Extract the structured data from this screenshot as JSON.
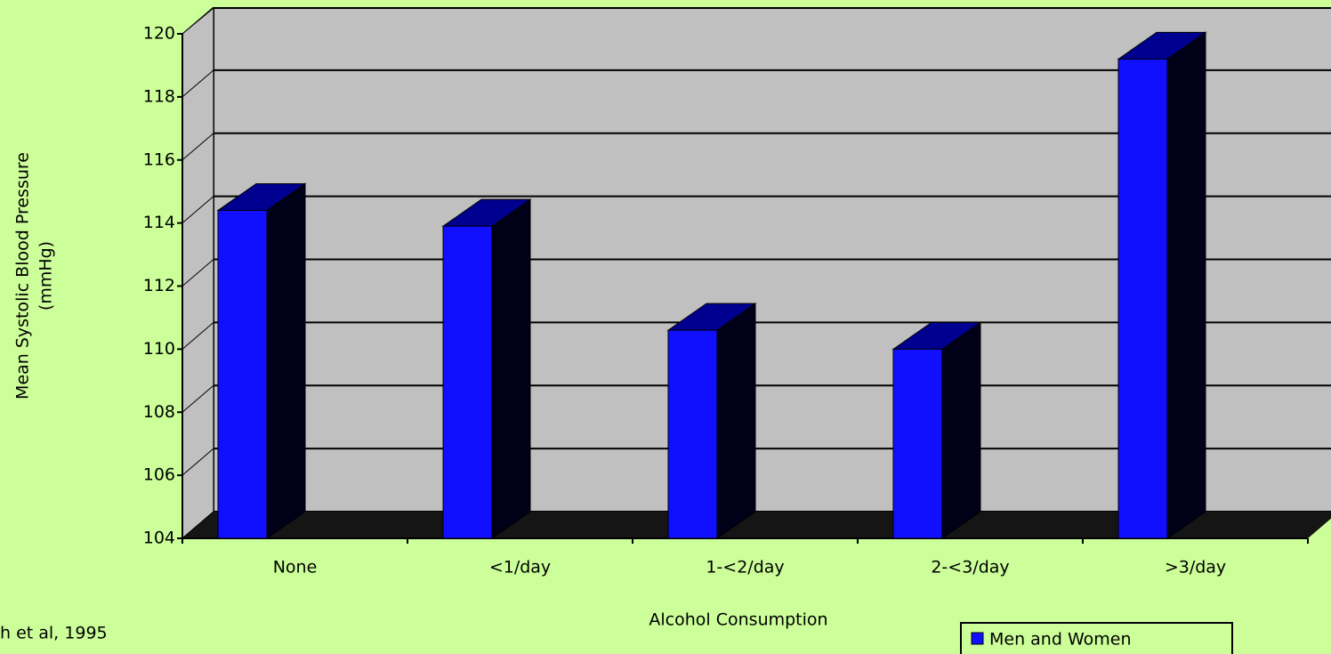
{
  "chart_data": {
    "type": "bar3d",
    "ylabel": [
      "Mean Systolic Blood Pressure",
      "(mmHg)"
    ],
    "xlabel": "Alcohol Consumption",
    "categories": [
      "None",
      "<1/day",
      "1-<2/day",
      "2-<3/day",
      ">3/day"
    ],
    "series": [
      {
        "name": "Men and Women",
        "color": "#1010ff",
        "values": [
          114.4,
          113.9,
          110.6,
          110.0,
          119.2
        ]
      }
    ],
    "ylim": [
      104,
      120
    ],
    "yticks": [
      104,
      106,
      108,
      110,
      112,
      114,
      116,
      118,
      120
    ],
    "grid": true,
    "legend": "bottom-right",
    "note": "h et al, 1995"
  }
}
